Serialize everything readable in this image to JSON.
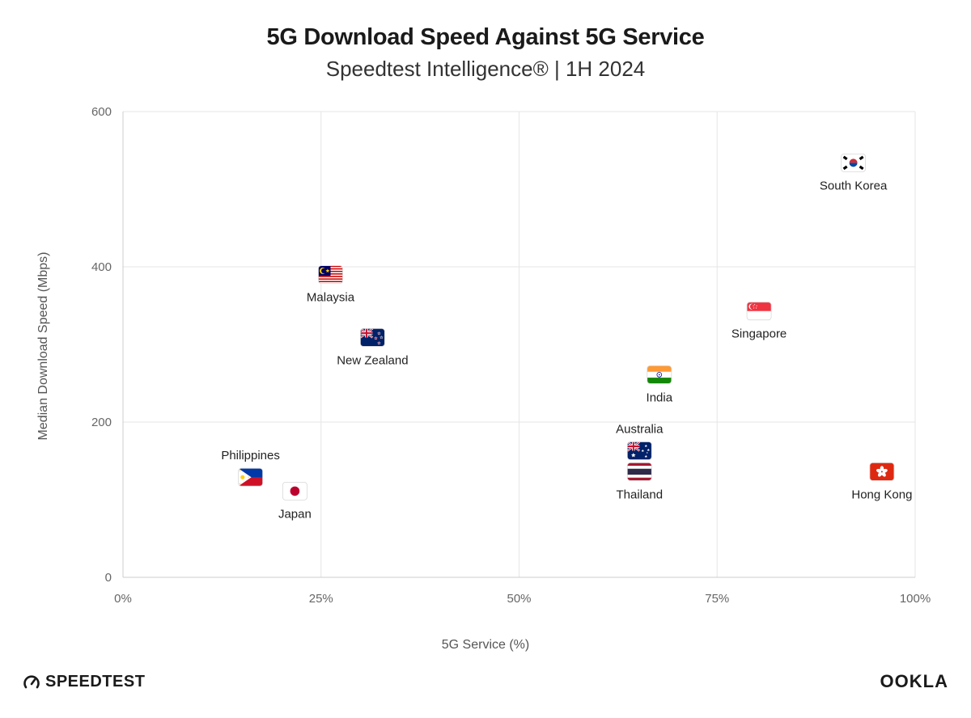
{
  "header": {
    "title": "5G Download Speed Against 5G Service",
    "subtitle": "Speedtest Intelligence® | 1H 2024"
  },
  "footer": {
    "left_brand": "SPEEDTEST",
    "right_brand": "OOKLA"
  },
  "chart_data": {
    "type": "scatter",
    "title": "5G Download Speed Against 5G Service",
    "subtitle": "Speedtest Intelligence® | 1H 2024",
    "xlabel": "5G Service (%)",
    "ylabel": "Median Download Speed (Mbps)",
    "xlim": [
      0,
      100
    ],
    "ylim": [
      0,
      600
    ],
    "xticks": [
      "0%",
      "25%",
      "50%",
      "75%",
      "100%"
    ],
    "yticks": [
      "0",
      "200",
      "400",
      "600"
    ],
    "grid": true,
    "points": [
      {
        "name": "South Korea",
        "x": 92.2,
        "y": 534,
        "flag": "south-korea",
        "label_pos": "below"
      },
      {
        "name": "Malaysia",
        "x": 26.2,
        "y": 390,
        "flag": "malaysia",
        "label_pos": "below"
      },
      {
        "name": "New Zealand",
        "x": 31.5,
        "y": 309,
        "flag": "new-zealand",
        "label_pos": "below"
      },
      {
        "name": "Singapore",
        "x": 80.3,
        "y": 343,
        "flag": "singapore",
        "label_pos": "below"
      },
      {
        "name": "India",
        "x": 67.7,
        "y": 261,
        "flag": "india",
        "label_pos": "below"
      },
      {
        "name": "Australia",
        "x": 65.2,
        "y": 163,
        "flag": "australia",
        "label_pos": "above"
      },
      {
        "name": "Thailand",
        "x": 65.2,
        "y": 136,
        "flag": "thailand",
        "label_pos": "below"
      },
      {
        "name": "Hong Kong",
        "x": 95.8,
        "y": 136,
        "flag": "hong-kong",
        "label_pos": "below"
      },
      {
        "name": "Philippines",
        "x": 16.1,
        "y": 129,
        "flag": "philippines",
        "label_pos": "above"
      },
      {
        "name": "Japan",
        "x": 21.7,
        "y": 111,
        "flag": "japan",
        "label_pos": "below"
      }
    ],
    "colors": {
      "grid": "#e6e6e6",
      "axis_text": "#666666"
    }
  }
}
